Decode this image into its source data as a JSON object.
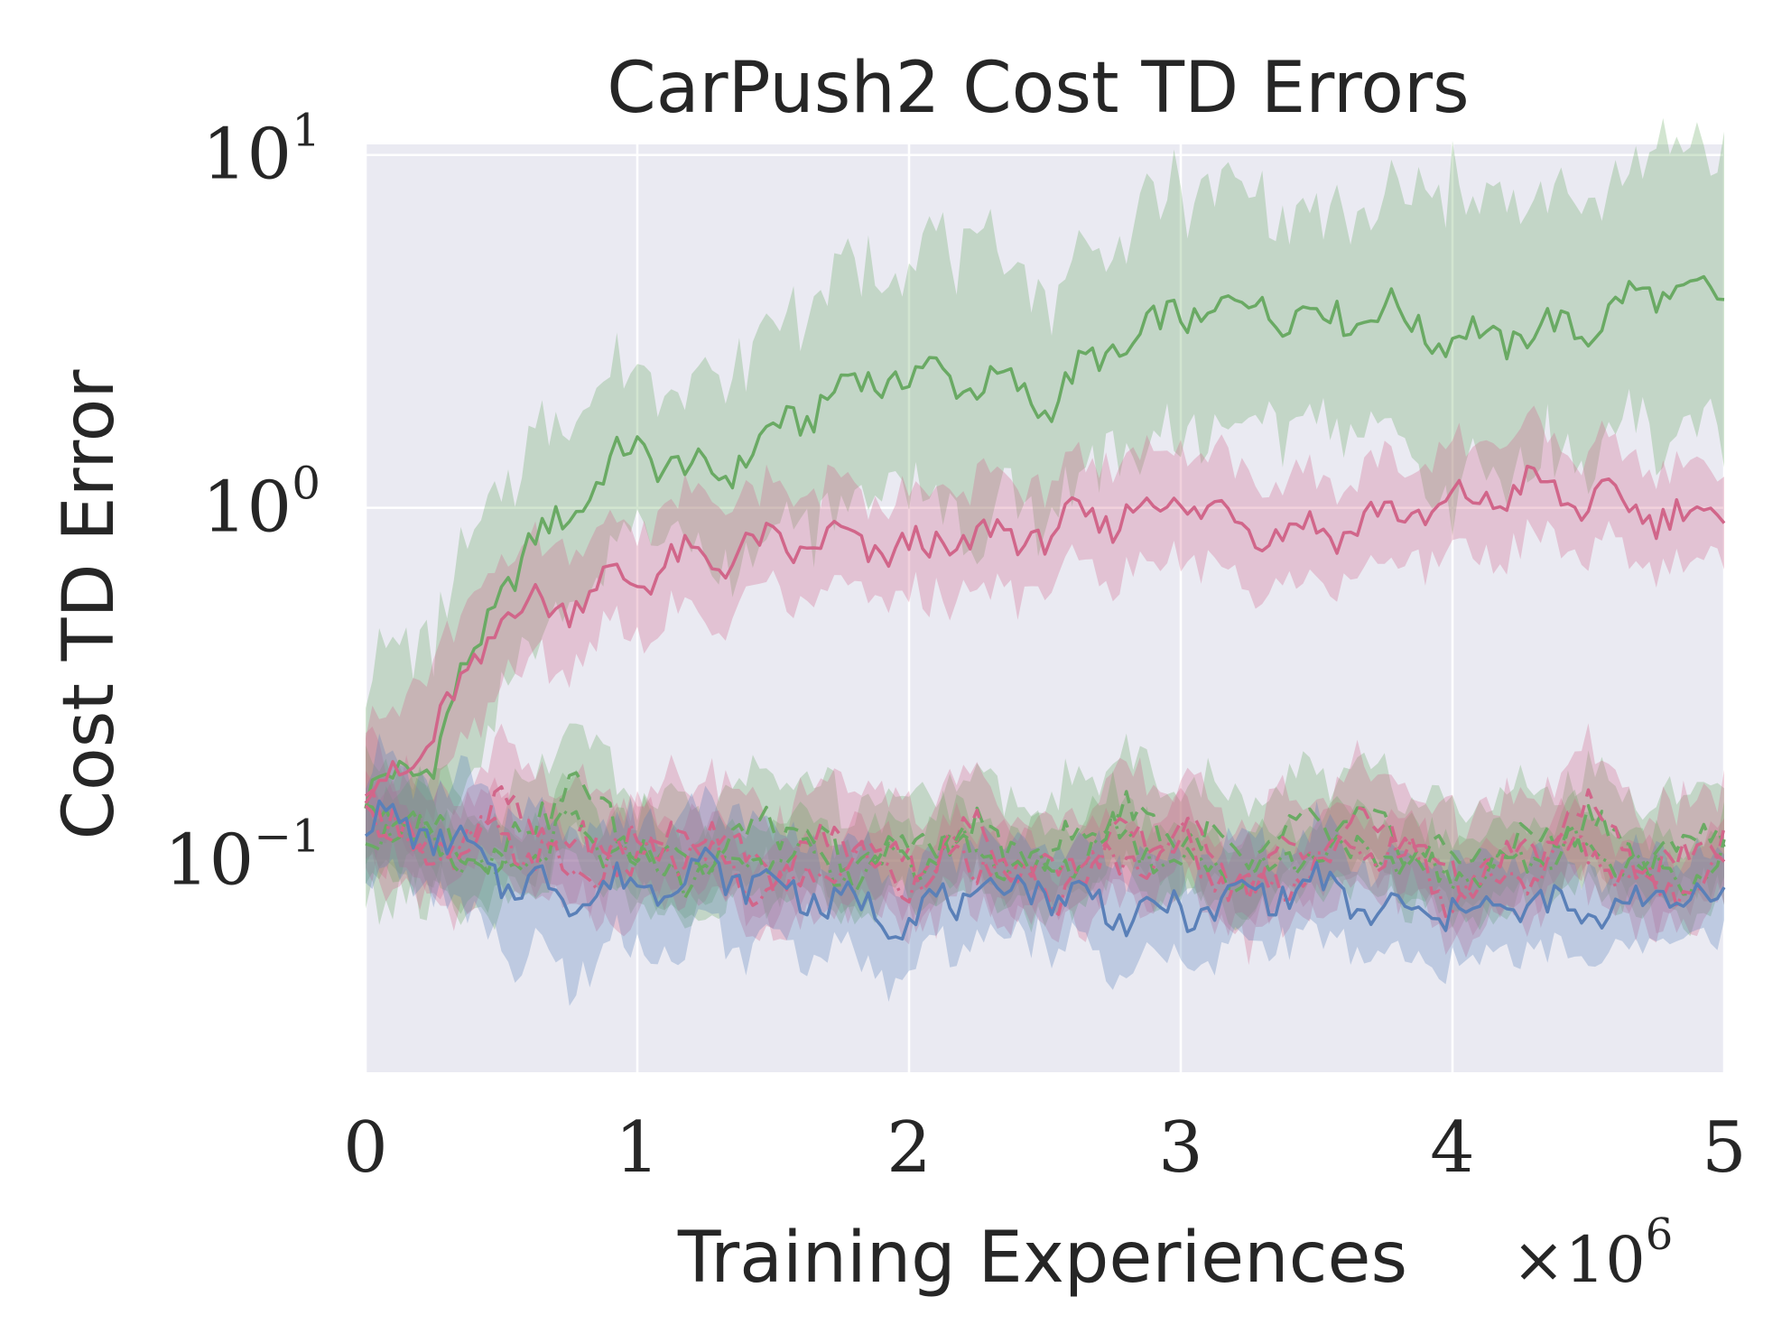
{
  "chart_data": {
    "type": "line",
    "title": "CarPush2 Cost TD Errors",
    "xlabel": "Training Experiences",
    "ylabel": "Cost TD Error",
    "x_scale_label": "×10",
    "x_scale_exponent": "6",
    "xlim": [
      0,
      5
    ],
    "ylim_log10": [
      -1.6,
      1.03
    ],
    "yscale": "log",
    "x_ticks": [
      {
        "value": 0,
        "label": "0"
      },
      {
        "value": 1,
        "label": "1"
      },
      {
        "value": 2,
        "label": "2"
      },
      {
        "value": 3,
        "label": "3"
      },
      {
        "value": 4,
        "label": "4"
      },
      {
        "value": 5,
        "label": "5"
      }
    ],
    "y_ticks": [
      {
        "log": 1,
        "base": "10",
        "exp": "1"
      },
      {
        "log": 0,
        "base": "10",
        "exp": "0"
      },
      {
        "log": -1,
        "base": "10",
        "exp": "−1"
      }
    ],
    "grid": true,
    "background": "#eaeaf2",
    "x": [
      0,
      0.25,
      0.5,
      0.75,
      1.0,
      1.25,
      1.5,
      1.75,
      2.0,
      2.25,
      2.5,
      2.75,
      3.0,
      3.25,
      3.5,
      3.75,
      4.0,
      4.25,
      4.5,
      4.75,
      5.0
    ],
    "series": [
      {
        "name": "green-solid",
        "color": "#6aaa64",
        "dash": "",
        "values": [
          0.15,
          0.2,
          0.6,
          1.0,
          1.5,
          1.2,
          1.6,
          2.2,
          2.4,
          2.3,
          2.0,
          2.8,
          3.5,
          3.8,
          3.5,
          3.6,
          3.0,
          3.1,
          3.3,
          4.2,
          3.8
        ],
        "band": [
          0.35,
          0.35,
          0.28,
          0.3,
          0.22,
          0.25,
          0.3,
          0.32,
          0.35,
          0.38,
          0.32,
          0.3,
          0.35,
          0.32,
          0.28,
          0.3,
          0.45,
          0.35,
          0.35,
          0.4,
          0.42
        ]
      },
      {
        "name": "red-solid",
        "color": "#d1668a",
        "dash": "",
        "values": [
          0.15,
          0.22,
          0.5,
          0.55,
          0.65,
          0.72,
          0.78,
          0.8,
          0.75,
          0.82,
          0.85,
          0.95,
          1.05,
          0.9,
          0.85,
          0.95,
          1.0,
          1.15,
          1.05,
          0.98,
          0.92
        ],
        "band": [
          0.2,
          0.22,
          0.15,
          0.16,
          0.15,
          0.16,
          0.14,
          0.15,
          0.16,
          0.15,
          0.15,
          0.15,
          0.16,
          0.15,
          0.15,
          0.14,
          0.15,
          0.15,
          0.14,
          0.14,
          0.12
        ]
      },
      {
        "name": "green-dashed",
        "color": "#6aaa64",
        "dash": "18,10",
        "values": [
          0.14,
          0.12,
          0.1,
          0.17,
          0.11,
          0.1,
          0.13,
          0.1,
          0.11,
          0.12,
          0.1,
          0.14,
          0.12,
          0.1,
          0.13,
          0.12,
          0.1,
          0.11,
          0.13,
          0.1,
          0.13
        ],
        "band": [
          0.14,
          0.15,
          0.14,
          0.15,
          0.14,
          0.15,
          0.14,
          0.15,
          0.14,
          0.15,
          0.14,
          0.15,
          0.14,
          0.15,
          0.14,
          0.15,
          0.14,
          0.15,
          0.14,
          0.15,
          0.14
        ]
      },
      {
        "name": "red-dashed",
        "color": "#d1668a",
        "dash": "18,10",
        "values": [
          0.16,
          0.1,
          0.14,
          0.11,
          0.1,
          0.13,
          0.09,
          0.12,
          0.1,
          0.12,
          0.09,
          0.11,
          0.12,
          0.09,
          0.11,
          0.13,
          0.09,
          0.1,
          0.14,
          0.09,
          0.12
        ],
        "band": [
          0.16,
          0.15,
          0.16,
          0.15,
          0.16,
          0.15,
          0.16,
          0.15,
          0.16,
          0.15,
          0.16,
          0.15,
          0.16,
          0.15,
          0.16,
          0.15,
          0.16,
          0.15,
          0.16,
          0.15,
          0.15
        ]
      },
      {
        "name": "green-dashdot",
        "color": "#6aaa64",
        "dash": "16,6,3,6",
        "values": [
          0.13,
          0.11,
          0.09,
          0.12,
          0.1,
          0.09,
          0.11,
          0.09,
          0.1,
          0.11,
          0.09,
          0.12,
          0.1,
          0.09,
          0.11,
          0.1,
          0.09,
          0.1,
          0.11,
          0.09,
          0.1
        ],
        "band": [
          0.1,
          0.1,
          0.1,
          0.1,
          0.1,
          0.1,
          0.1,
          0.1,
          0.1,
          0.1,
          0.1,
          0.1,
          0.1,
          0.1,
          0.1,
          0.1,
          0.1,
          0.1,
          0.1,
          0.1,
          0.1
        ]
      },
      {
        "name": "red-dashdot",
        "color": "#d1668a",
        "dash": "16,6,3,6",
        "values": [
          0.14,
          0.1,
          0.12,
          0.09,
          0.11,
          0.1,
          0.08,
          0.1,
          0.09,
          0.1,
          0.08,
          0.1,
          0.11,
          0.08,
          0.1,
          0.11,
          0.08,
          0.09,
          0.11,
          0.08,
          0.1
        ],
        "band": [
          0.1,
          0.1,
          0.1,
          0.1,
          0.1,
          0.1,
          0.1,
          0.1,
          0.1,
          0.1,
          0.1,
          0.1,
          0.1,
          0.1,
          0.1,
          0.1,
          0.1,
          0.1,
          0.1,
          0.1,
          0.1
        ]
      },
      {
        "name": "blue-solid",
        "color": "#5a80b8",
        "dash": "",
        "values": [
          0.13,
          0.12,
          0.09,
          0.08,
          0.085,
          0.095,
          0.085,
          0.075,
          0.07,
          0.08,
          0.085,
          0.072,
          0.07,
          0.08,
          0.085,
          0.07,
          0.072,
          0.075,
          0.07,
          0.08,
          0.078
        ],
        "band": [
          0.15,
          0.18,
          0.2,
          0.22,
          0.18,
          0.18,
          0.16,
          0.14,
          0.15,
          0.14,
          0.13,
          0.14,
          0.14,
          0.13,
          0.14,
          0.13,
          0.14,
          0.13,
          0.12,
          0.12,
          0.12
        ]
      }
    ]
  }
}
